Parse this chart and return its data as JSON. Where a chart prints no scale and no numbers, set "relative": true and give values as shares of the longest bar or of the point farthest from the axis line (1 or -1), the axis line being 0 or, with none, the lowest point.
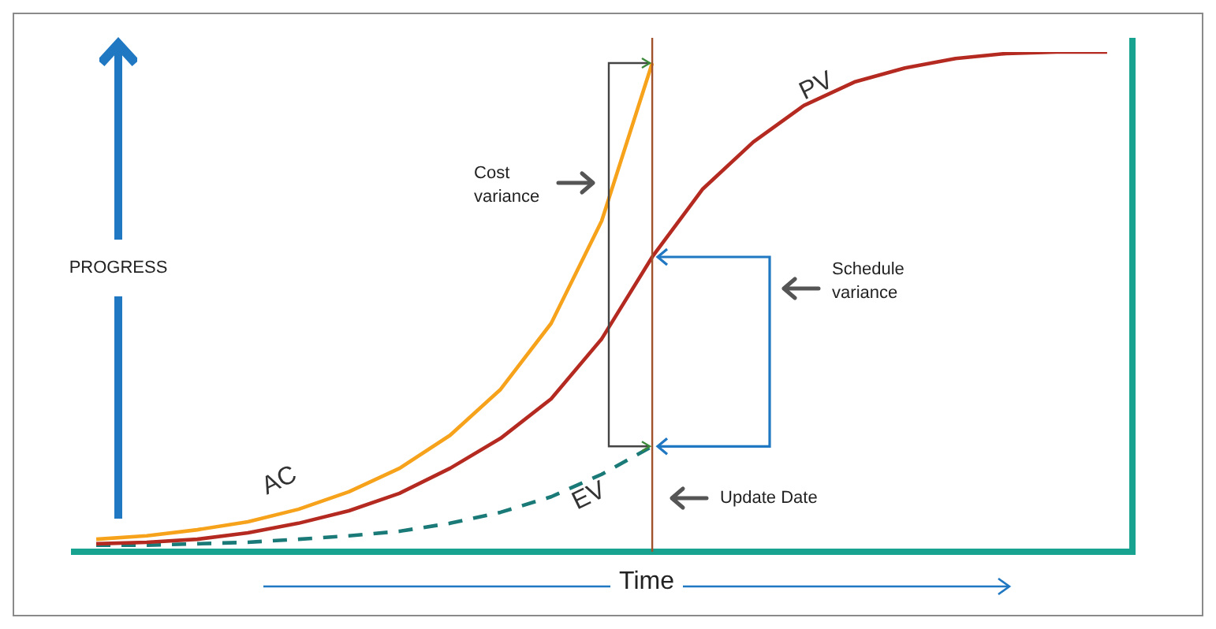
{
  "chart_data": {
    "type": "line",
    "relative": true,
    "xlabel": "Time",
    "ylabel": "PROGRESS",
    "categories": [
      null,
      null,
      null,
      null,
      null,
      null,
      null,
      null,
      null,
      null,
      null,
      null,
      null,
      null,
      null,
      null,
      null,
      null,
      null,
      null,
      null
    ],
    "tick_labels": false,
    "grid": false,
    "legend": false,
    "marker": "none",
    "series": [
      {
        "name": "PV",
        "color": "#b52a20",
        "values": [
          0.016,
          0.019,
          0.025,
          0.038,
          0.057,
          0.082,
          0.117,
          0.167,
          0.227,
          0.306,
          0.426,
          0.59,
          0.726,
          0.82,
          0.893,
          0.94,
          0.968,
          0.987,
          0.997,
          1,
          1
        ]
      },
      {
        "name": "AC",
        "color": "#f7a21b",
        "values": [
          0.025,
          0.032,
          0.044,
          0.06,
          0.085,
          0.12,
          0.167,
          0.233,
          0.325,
          0.457,
          0.662,
          0.978,
          null,
          null,
          null,
          null,
          null,
          null,
          null,
          null,
          null
        ]
      },
      {
        "name": "EV",
        "color": "#1a7a78",
        "line_style": "dashed",
        "values": [
          0.013,
          0.013,
          0.016,
          0.019,
          0.025,
          0.032,
          0.041,
          0.057,
          0.079,
          0.11,
          0.155,
          0.211,
          null,
          null,
          null,
          null,
          null,
          null,
          null,
          null,
          null
        ]
      }
    ],
    "annotations": [
      "Cost variance",
      "Schedule variance",
      "Update Date"
    ]
  }
}
